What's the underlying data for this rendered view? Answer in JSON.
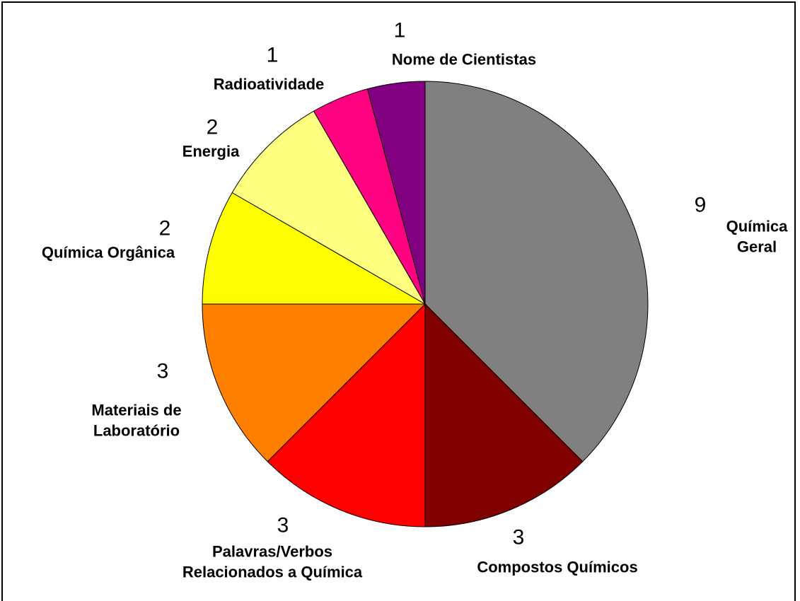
{
  "chart_data": {
    "type": "pie",
    "categories": [
      "Química Geral",
      "Compostos Químicos",
      "Palavras/Verbos Relacionados a Química",
      "Materiais de Laboratório",
      "Química Orgânica",
      "Energia",
      "Radioatividade",
      "Nome de Cientistas"
    ],
    "values": [
      9,
      3,
      3,
      3,
      2,
      2,
      1,
      1
    ],
    "colors": [
      "#808080",
      "#800000",
      "#ff0000",
      "#ff8000",
      "#ffff00",
      "#ffff80",
      "#ff0080",
      "#800080"
    ]
  }
}
